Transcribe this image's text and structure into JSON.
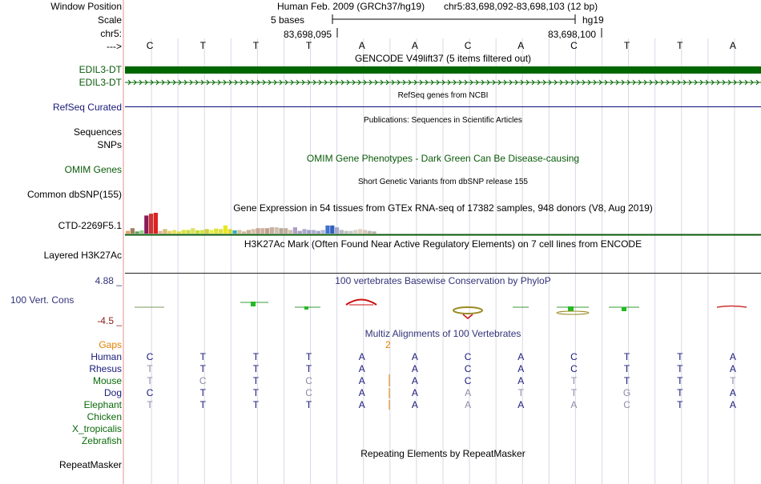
{
  "header": {
    "window_position_label": "Window Position",
    "scale_label": "Scale",
    "chr_label": "chr5:",
    "arrow_label": "--->",
    "assembly_title": "Human Feb. 2009 (GRCh37/hg19)",
    "position": "chr5:83,698,092-83,698,103 (12 bp)",
    "scale_text": "5 bases",
    "scale_db": "hg19",
    "coord_left": "83,698,095",
    "coord_right": "83,698,100"
  },
  "bases": [
    "C",
    "T",
    "T",
    "T",
    "A",
    "A",
    "C",
    "A",
    "C",
    "T",
    "T",
    "A"
  ],
  "tracks": {
    "gencode": {
      "title": "GENCODE V49lift37 (5 items filtered out)",
      "label1": "EDIL3-DT",
      "label2": "EDIL3-DT"
    },
    "refseq": {
      "label": "RefSeq Curated",
      "title": "RefSeq genes from NCBI"
    },
    "publications": {
      "title": "Publications: Sequences in Scientific Articles"
    },
    "sequences": {
      "label": "Sequences"
    },
    "snps": {
      "label": "SNPs"
    },
    "omim": {
      "label": "OMIM Genes",
      "title": "OMIM Gene Phenotypes - Dark Green Can Be Disease-causing"
    },
    "dbsnp": {
      "label": "Common dbSNP(155)",
      "title": "Short Genetic Variants from dbSNP release 155"
    },
    "gtex": {
      "label": "CTD-2269F5.1",
      "title": "Gene Expression in 54 tissues from GTEx RNA-seq of 17382 samples, 948 donors (V8, Aug 2019)"
    },
    "h3k27ac": {
      "label": "Layered H3K27Ac",
      "title": "H3K27Ac Mark (Often Found Near Active Regulatory Elements) on 7 cell lines from ENCODE"
    },
    "conservation": {
      "label": "100 Vert. Cons",
      "max": "4.88 _",
      "min": "-4.5 _",
      "title": "100 vertebrates Basewise Conservation by PhyloP"
    },
    "multiz": {
      "title": "Multiz Alignments of 100 Vertebrates",
      "gaps_label": "Gaps",
      "gap_count": "2",
      "species": [
        {
          "name": "Human",
          "seq": [
            "C",
            "T",
            "T",
            "T",
            "A",
            "A",
            "C",
            "A",
            "C",
            "T",
            "T",
            "A"
          ]
        },
        {
          "name": "Rhesus",
          "seq": [
            "T",
            "T",
            "T",
            "T",
            "A",
            "A",
            "C",
            "A",
            "C",
            "T",
            "T",
            "A"
          ]
        },
        {
          "name": "Mouse",
          "seq": [
            "T",
            "C",
            "T",
            "C",
            "A",
            "A",
            "C",
            "A",
            "T",
            "T",
            "T",
            "T"
          ]
        },
        {
          "name": "Dog",
          "seq": [
            "C",
            "T",
            "T",
            "C",
            "A",
            "A",
            "A",
            "T",
            "T",
            "G",
            "T",
            "A"
          ]
        },
        {
          "name": "Elephant",
          "seq": [
            "T",
            "T",
            "T",
            "T",
            "A",
            "A",
            "A",
            "A",
            "A",
            "C",
            "T",
            "A"
          ]
        },
        {
          "name": "Chicken",
          "seq": []
        },
        {
          "name": "X_tropicalis",
          "seq": []
        },
        {
          "name": "Zebrafish",
          "seq": []
        }
      ]
    },
    "repeatmasker": {
      "label": "RepeatMasker",
      "title": "Repeating Elements by RepeatMasker"
    }
  },
  "gtex_values": [
    0.15,
    0.3,
    0.12,
    0.18,
    1.0,
    1.1,
    1.15,
    0.15,
    0.25,
    0.15,
    0.2,
    0.12,
    0.2,
    0.2,
    0.3,
    0.18,
    0.2,
    0.25,
    0.2,
    0.28,
    0.25,
    0.45,
    0.25,
    0.18,
    0.2,
    0.12,
    0.2,
    0.25,
    0.3,
    0.3,
    0.3,
    0.35,
    0.35,
    0.3,
    0.3,
    0.2,
    0.35,
    0.15,
    0.25,
    0.2,
    0.2,
    0.15,
    0.2,
    0.45,
    0.45,
    0.35,
    0.2,
    0.15,
    0.15,
    0.2,
    0.25,
    0.2,
    0.15,
    0.12
  ],
  "colors": {
    "gencode": "#006600",
    "refseq": "#0c0c78",
    "separator": "#f3c8c8",
    "grid": "#d8d8e6",
    "gaps": "#e08000",
    "conserved_base": "#1a1a7a",
    "divergent_base": "#8c8ca8"
  }
}
